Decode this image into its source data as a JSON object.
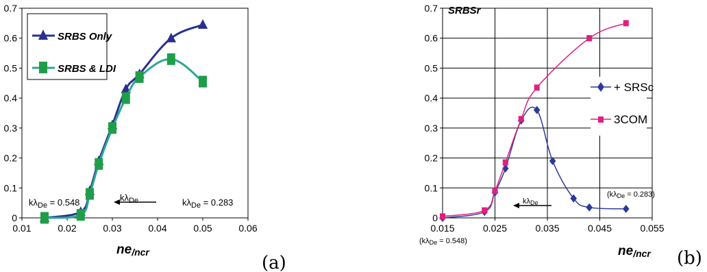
{
  "colors": {
    "navy": "#2a2f8f",
    "teal": "#2aa890",
    "green": "#1f9e4a",
    "magenta": "#e0207f",
    "diamond": "#2b3a9a"
  },
  "chart_data": [
    {
      "type": "line",
      "panel_label": "(a)",
      "xlabel_main": "ne",
      "xlabel_sub": "/ncr",
      "xlim": [
        0.01,
        0.06
      ],
      "ylim": [
        0,
        0.7
      ],
      "xticks": [
        "0.01",
        "0.02",
        "0.03",
        "0.04",
        "0.05",
        "0.06"
      ],
      "yticks": [
        "0",
        "0.1",
        "0.2",
        "0.3",
        "0.4",
        "0.5",
        "0.6",
        "0.7"
      ],
      "grid": false,
      "legend": "top-left",
      "series": [
        {
          "name": "SRBS Only",
          "marker": "triangle",
          "color": "#2a2f8f",
          "x": [
            0.015,
            0.023,
            0.025,
            0.027,
            0.03,
            0.033,
            0.036,
            0.043,
            0.05
          ],
          "y": [
            0.0,
            0.02,
            0.09,
            0.19,
            0.31,
            0.43,
            0.48,
            0.6,
            0.645
          ]
        },
        {
          "name": "SRBS & LDI",
          "marker": "square",
          "color": "#2aa890",
          "x": [
            0.015,
            0.023,
            0.025,
            0.027,
            0.03,
            0.033,
            0.036,
            0.043,
            0.05
          ],
          "y": [
            0.0,
            0.01,
            0.08,
            0.18,
            0.3,
            0.4,
            0.47,
            0.53,
            0.455
          ]
        }
      ],
      "annotations": {
        "left_k": "kλ",
        "left_k_sub": "De",
        "left_k_val": " = 0.548",
        "arrow_k": "kλ",
        "arrow_k_sub": "De",
        "right_k": "kλ",
        "right_k_sub": "De",
        "right_k_val": " = 0.283"
      }
    },
    {
      "type": "line",
      "panel_label": "(b)",
      "title": "SRBSr",
      "xlabel_main": "ne",
      "xlabel_sub": "/ncr",
      "xlim": [
        0.015,
        0.055
      ],
      "ylim": [
        0,
        0.7
      ],
      "xticks": [
        "0.015",
        "0.025",
        "0.035",
        "0.045",
        "0.055"
      ],
      "yticks": [
        "0",
        "0.1",
        "0.2",
        "0.3",
        "0.4",
        "0.5",
        "0.6",
        "0.7"
      ],
      "grid": true,
      "legend": "right",
      "series": [
        {
          "name": "+ SRSc",
          "marker": "diamond",
          "color": "#2b3a9a",
          "x": [
            0.015,
            0.023,
            0.025,
            0.027,
            0.03,
            0.033,
            0.036,
            0.04,
            0.043,
            0.05
          ],
          "y": [
            0.0,
            0.02,
            0.085,
            0.165,
            0.325,
            0.36,
            0.19,
            0.065,
            0.035,
            0.03
          ]
        },
        {
          "name": "3COM",
          "marker": "square",
          "color": "#e0207f",
          "x": [
            0.015,
            0.023,
            0.025,
            0.027,
            0.03,
            0.033,
            0.043,
            0.05
          ],
          "y": [
            0.005,
            0.025,
            0.09,
            0.185,
            0.33,
            0.435,
            0.6,
            0.65
          ]
        }
      ],
      "annotations": {
        "left_k": "(kλ",
        "left_k_sub": "De",
        "left_k_val": " = 0.548)",
        "arrow_k": "kλ",
        "arrow_k_sub": "De",
        "right_k": "(kλ",
        "right_k_sub": "De",
        "right_k_val": " = 0.283)"
      }
    }
  ]
}
